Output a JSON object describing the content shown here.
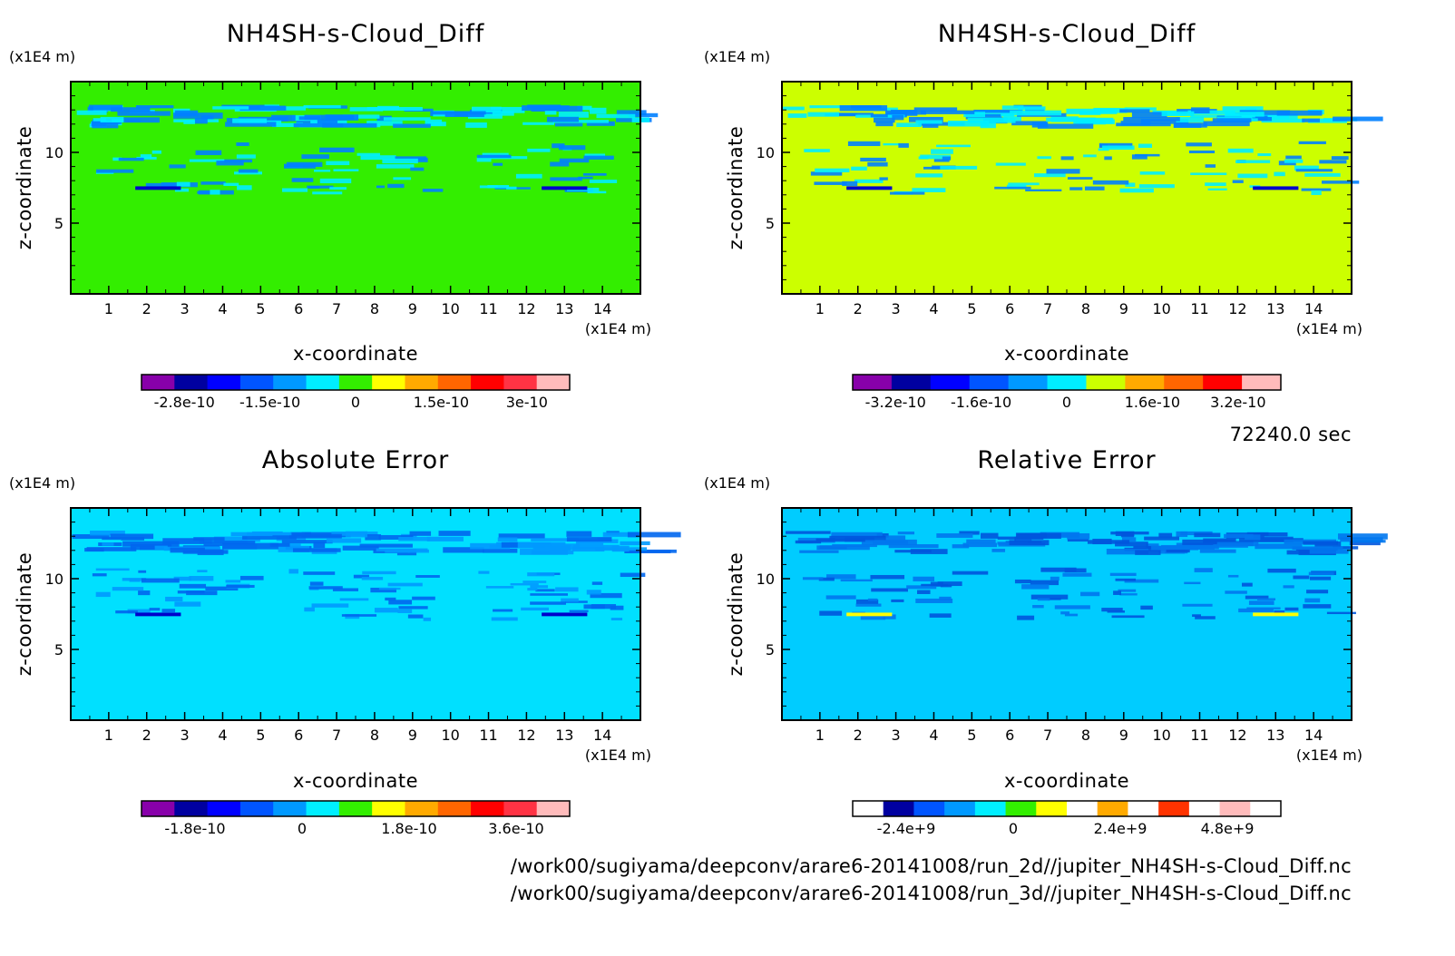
{
  "time_label": "72240.0 sec",
  "footer": {
    "file_2d": "/work00/sugiyama/deepconv/arare6-20141008/run_2d//jupiter_NH4SH-s-Cloud_Diff.nc",
    "file_3d": "/work00/sugiyama/deepconv/arare6-20141008/run_3d//jupiter_NH4SH-s-Cloud_Diff.nc"
  },
  "chart_data": [
    {
      "type": "heatmap",
      "title": "NH4SH-s-Cloud_Diff",
      "xlabel": "x-coordinate",
      "ylabel": "z-coordinate",
      "x_unit": "(x1E4 m)",
      "y_unit": "(x1E4 m)",
      "xlim": [
        0,
        15
      ],
      "ylim": [
        0,
        15
      ],
      "x_ticks": [
        1,
        2,
        3,
        4,
        5,
        6,
        7,
        8,
        9,
        10,
        11,
        12,
        13,
        14
      ],
      "y_ticks": [
        5,
        10
      ],
      "background_color": "#33ee00",
      "pattern_colors": [
        "#00eeff",
        "#0080ff",
        "#0000cc"
      ],
      "colorbar": {
        "colors": [
          "#8800aa",
          "#0000a0",
          "#0000ff",
          "#0055ff",
          "#0099ff",
          "#00eeff",
          "#33ee00",
          "#ffff00",
          "#ffaa00",
          "#ff6600",
          "#ff0000",
          "#ff3344",
          "#ffbbbb"
        ],
        "tick_labels": [
          "-2.8e-10",
          "-1.5e-10",
          "0",
          "1.5e-10",
          "3e-10"
        ]
      }
    },
    {
      "type": "heatmap",
      "title": "NH4SH-s-Cloud_Diff",
      "xlabel": "x-coordinate",
      "ylabel": "z-coordinate",
      "x_unit": "(x1E4 m)",
      "y_unit": "(x1E4 m)",
      "xlim": [
        0,
        15
      ],
      "ylim": [
        0,
        15
      ],
      "x_ticks": [
        1,
        2,
        3,
        4,
        5,
        6,
        7,
        8,
        9,
        10,
        11,
        12,
        13,
        14
      ],
      "y_ticks": [
        5,
        10
      ],
      "background_color": "#ccff00",
      "pattern_colors": [
        "#00eeff",
        "#0080ff",
        "#0000cc"
      ],
      "colorbar": {
        "colors": [
          "#8800aa",
          "#0000a0",
          "#0000ff",
          "#0055ff",
          "#0099ff",
          "#00eeff",
          "#ccff00",
          "#ffaa00",
          "#ff6600",
          "#ff0000",
          "#ffbbbb"
        ],
        "tick_labels": [
          "-3.2e-10",
          "-1.6e-10",
          "0",
          "1.6e-10",
          "3.2e-10"
        ]
      }
    },
    {
      "type": "heatmap",
      "title": "Absolute Error",
      "xlabel": "x-coordinate",
      "ylabel": "z-coordinate",
      "x_unit": "(x1E4 m)",
      "y_unit": "(x1E4 m)",
      "xlim": [
        0,
        15
      ],
      "ylim": [
        0,
        15
      ],
      "x_ticks": [
        1,
        2,
        3,
        4,
        5,
        6,
        7,
        8,
        9,
        10,
        11,
        12,
        13,
        14
      ],
      "y_ticks": [
        5,
        10
      ],
      "background_color": "#00e0ff",
      "pattern_colors": [
        "#0099ff",
        "#0066ee",
        "#0000cc"
      ],
      "colorbar": {
        "colors": [
          "#8800aa",
          "#0000a0",
          "#0000ff",
          "#0055ff",
          "#0099ff",
          "#00eeff",
          "#33ee00",
          "#ffff00",
          "#ffaa00",
          "#ff6600",
          "#ff0000",
          "#ff3344",
          "#ffbbbb"
        ],
        "tick_labels": [
          "-1.8e-10",
          "0",
          "1.8e-10",
          "3.6e-10"
        ]
      }
    },
    {
      "type": "heatmap",
      "title": "Relative Error",
      "xlabel": "x-coordinate",
      "ylabel": "z-coordinate",
      "x_unit": "(x1E4 m)",
      "y_unit": "(x1E4 m)",
      "xlim": [
        0,
        15
      ],
      "ylim": [
        0,
        15
      ],
      "x_ticks": [
        1,
        2,
        3,
        4,
        5,
        6,
        7,
        8,
        9,
        10,
        11,
        12,
        13,
        14
      ],
      "y_ticks": [
        5,
        10
      ],
      "background_color": "#00ccff",
      "pattern_colors": [
        "#0077ee",
        "#0055dd",
        "#ffff00"
      ],
      "colorbar": {
        "colors": [
          "#ffffff",
          "#0000a0",
          "#0055ff",
          "#0099ff",
          "#00eeff",
          "#33ee00",
          "#ffff00",
          "#ffffff",
          "#ffaa00",
          "#ffffff",
          "#ff3300",
          "#ffffff",
          "#ffbbbb",
          "#ffffff"
        ],
        "tick_labels": [
          "-2.4e+9",
          "0",
          "2.4e+9",
          "4.8e+9"
        ]
      }
    }
  ]
}
